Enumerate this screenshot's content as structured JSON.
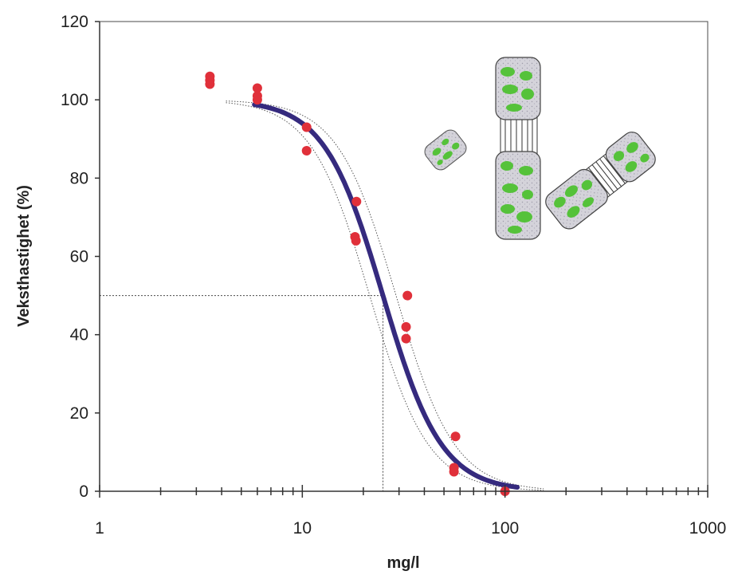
{
  "chart_data": {
    "type": "scatter",
    "title": "",
    "xlabel": "mg/l",
    "ylabel": "Veksthastighet (%)",
    "x_scale": "log",
    "xlim": [
      1,
      1000
    ],
    "ylim": [
      0,
      120
    ],
    "x_ticks": [
      1,
      10,
      100,
      1000
    ],
    "x_tick_labels": [
      "1",
      "10",
      "100",
      "1000"
    ],
    "y_ticks": [
      0,
      20,
      40,
      60,
      80,
      100,
      120
    ],
    "y_tick_labels": [
      "0",
      "20",
      "40",
      "60",
      "80",
      "100",
      "120"
    ],
    "grid": false,
    "legend": "none",
    "points": [
      {
        "x": 3.5,
        "y": 106
      },
      {
        "x": 3.5,
        "y": 105
      },
      {
        "x": 3.5,
        "y": 104
      },
      {
        "x": 6.0,
        "y": 103
      },
      {
        "x": 6.0,
        "y": 101
      },
      {
        "x": 6.0,
        "y": 100
      },
      {
        "x": 10.5,
        "y": 93
      },
      {
        "x": 10.5,
        "y": 87
      },
      {
        "x": 18.5,
        "y": 74
      },
      {
        "x": 18.2,
        "y": 65
      },
      {
        "x": 18.4,
        "y": 64
      },
      {
        "x": 33,
        "y": 50
      },
      {
        "x": 32.5,
        "y": 42
      },
      {
        "x": 32.5,
        "y": 39
      },
      {
        "x": 57,
        "y": 14
      },
      {
        "x": 56,
        "y": 6
      },
      {
        "x": 56,
        "y": 5
      },
      {
        "x": 100,
        "y": 0
      }
    ],
    "fitted_curve": {
      "model": "log-logistic",
      "ec50": 25,
      "slope": 3.0,
      "top": 100,
      "x_range": [
        5.8,
        115
      ]
    },
    "confidence_band": {
      "lower_ec50": 21.5,
      "upper_ec50": 29,
      "x_range": [
        4.2,
        155
      ]
    },
    "reference_line": {
      "y": 50,
      "x": 25
    },
    "colors": {
      "points": "#e0303a",
      "fit_line": "#352a7e",
      "confidence": "#555555",
      "reference": "#4a4a4a",
      "axis": "#333333",
      "algae_fill": "#d2d2d6",
      "chloroplast": "#55c23a"
    },
    "illustration": "green-algae-cells"
  }
}
